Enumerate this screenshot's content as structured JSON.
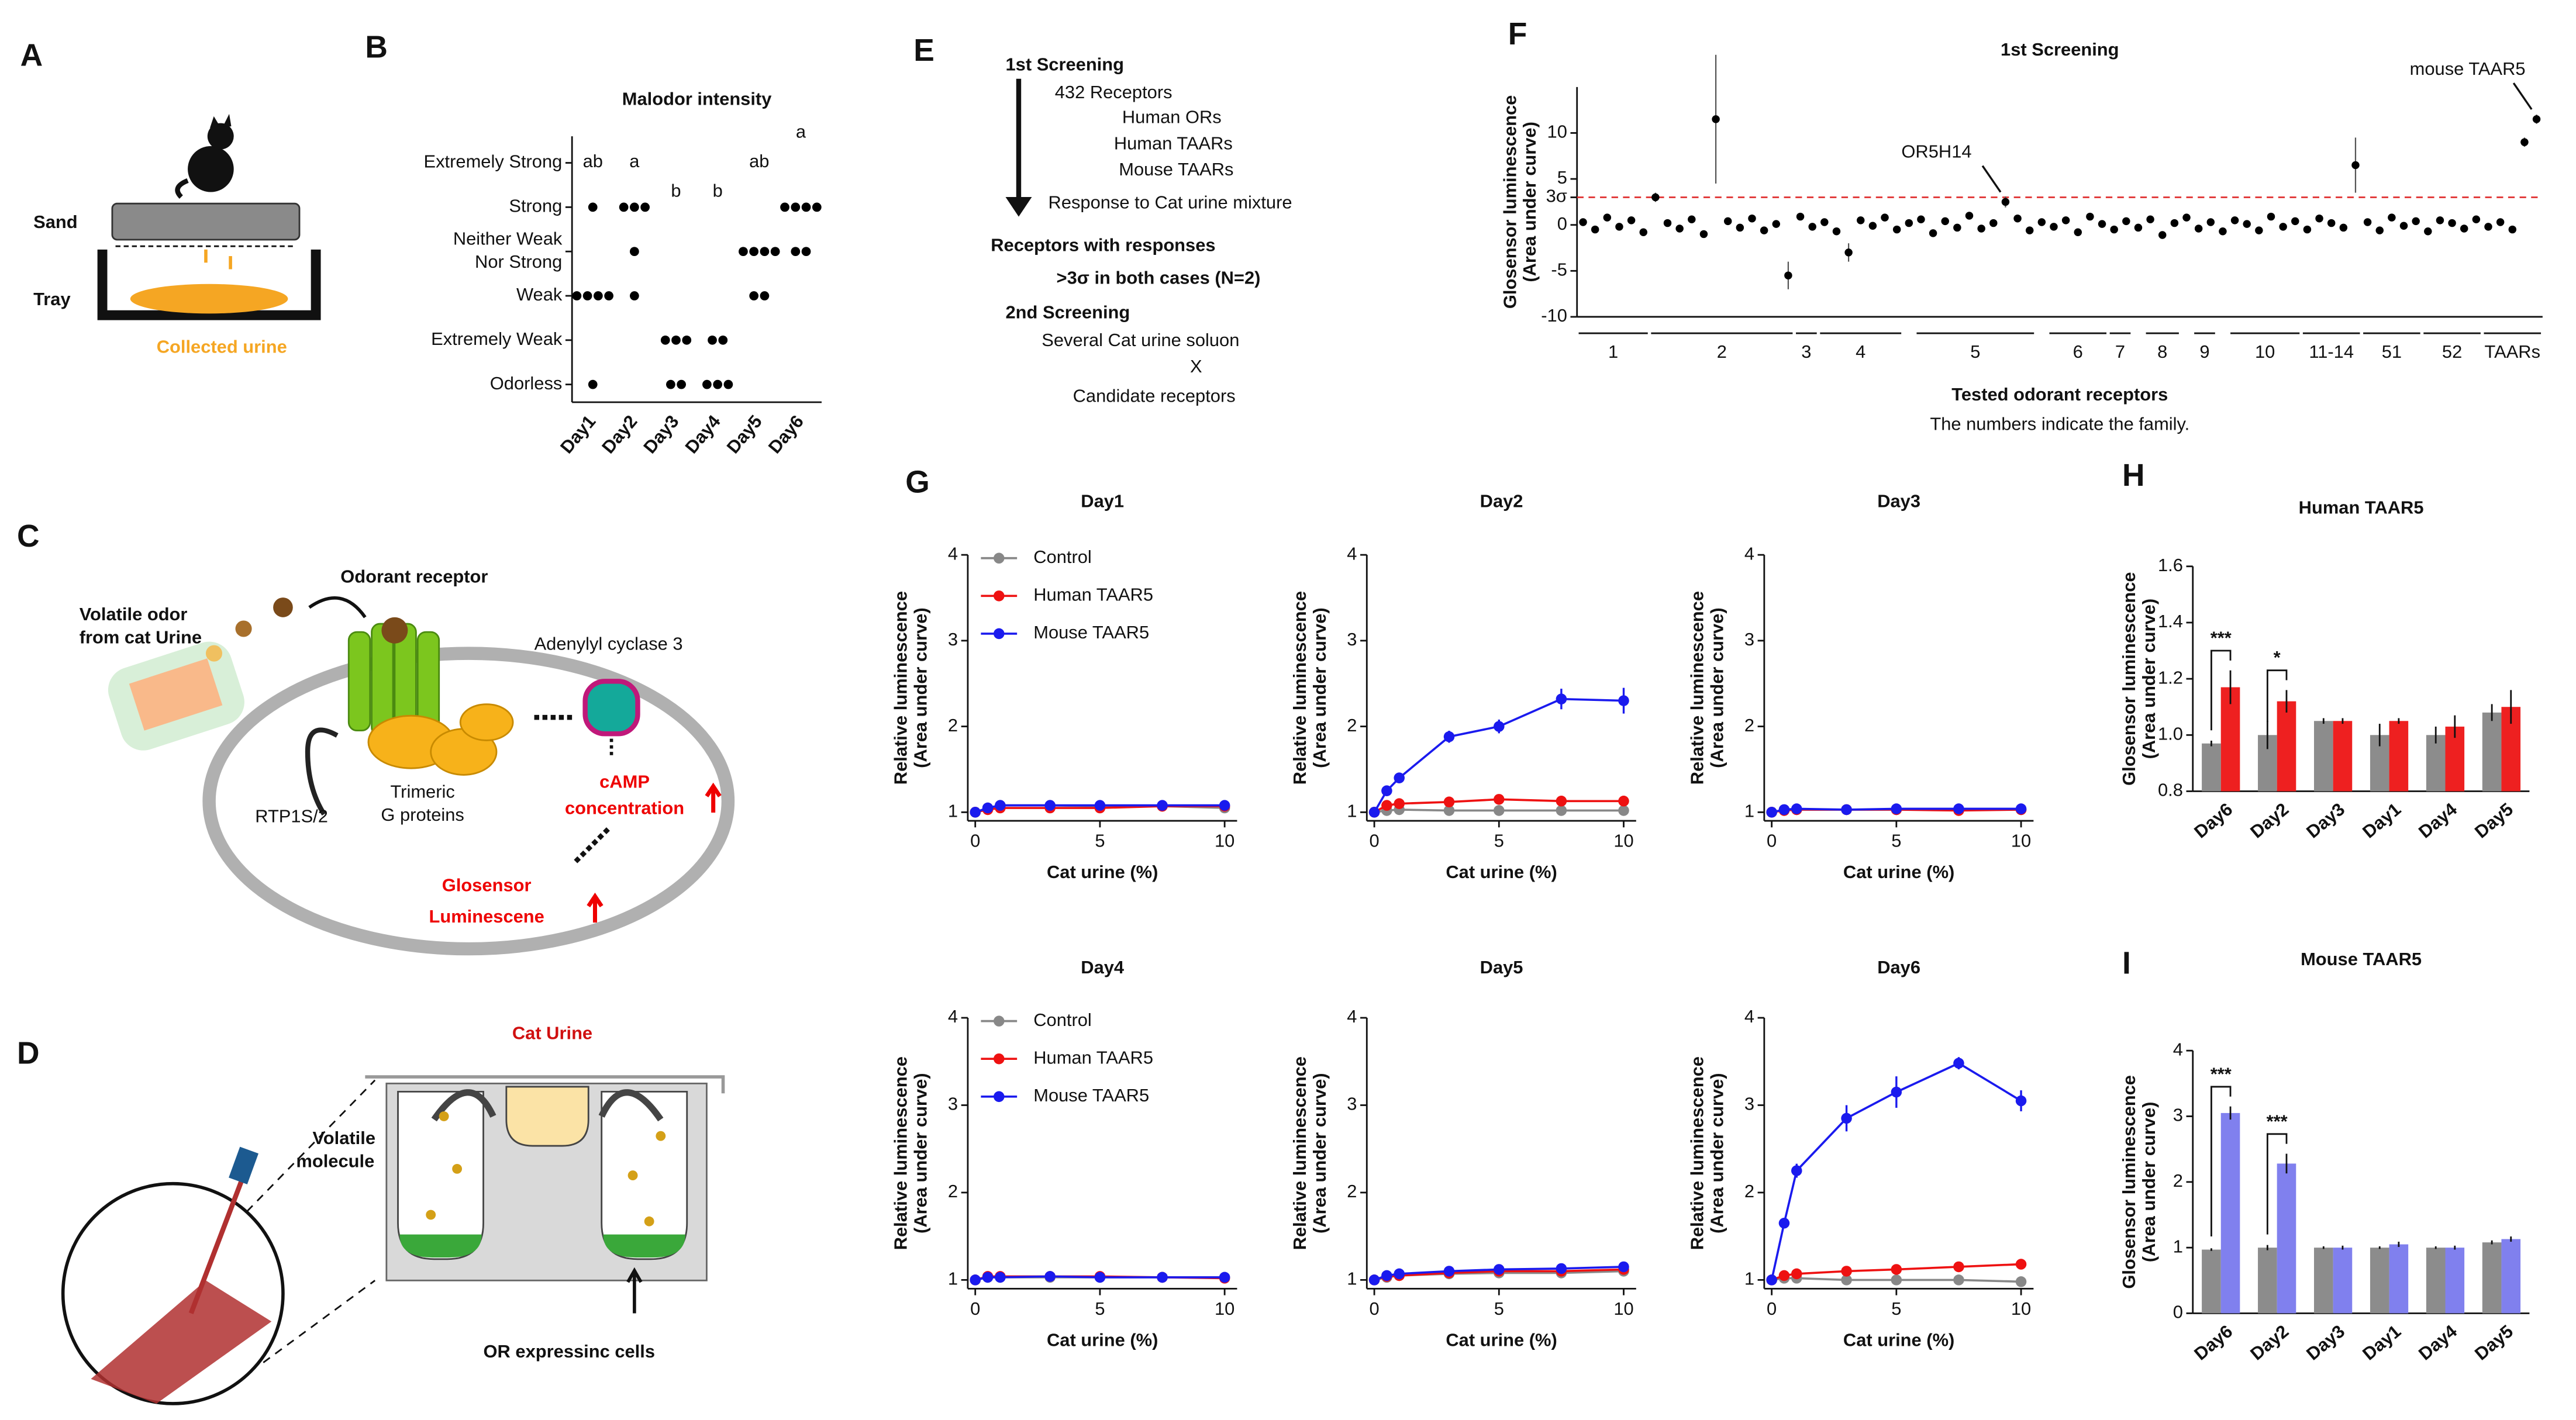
{
  "panels": [
    "A",
    "B",
    "C",
    "D",
    "E",
    "F",
    "G",
    "H",
    "I"
  ],
  "diagram_a": {
    "sand": "Sand",
    "tray": "Tray",
    "urine": "Collected urine"
  },
  "diagram_c": {
    "odor": [
      "Volatile odor",
      "from cat Urine"
    ],
    "receptor": "Odorant receptor",
    "cyclase": "Adenylyl cyclase 3",
    "rtp": "RTP1S/2",
    "gprotein": [
      "Trimeric",
      "G proteins"
    ],
    "camp": [
      "cAMP",
      "concentration"
    ],
    "glosensor": [
      "Glosensor",
      "Luminescene"
    ]
  },
  "diagram_d": {
    "urine": "Cat Urine",
    "molecule": [
      "Volatile",
      "molecule"
    ],
    "cells": "OR expressinc cells"
  },
  "diagram_e": {
    "first": "1st Screening",
    "receptors": "432 Receptors",
    "human_ors": "Human ORs",
    "human_taars": "Human TAARs",
    "mouse_taars": "Mouse TAARs",
    "response": "Response to Cat urine mixture",
    "with_responses": "Receptors with responses",
    "criterion": ">3σ in both cases (N=2)",
    "second": "2nd Screening",
    "solution": "Several Cat urine soluon",
    "times": "X",
    "candidates": "Candidate receptors"
  },
  "chart_data": [
    {
      "type": "dot",
      "title": "Malodor intensity",
      "categories": [
        "Day1",
        "Day2",
        "Day3",
        "Day4",
        "Day5",
        "Day6"
      ],
      "values": [
        [
          4,
          2,
          2,
          2,
          2,
          0
        ],
        [
          4,
          4,
          4,
          3,
          2
        ],
        [
          1,
          1,
          1,
          0,
          0
        ],
        [
          1,
          1,
          0,
          0,
          0
        ],
        [
          3,
          3,
          3,
          3,
          2,
          2
        ],
        [
          4,
          4,
          4,
          4,
          3,
          3
        ]
      ],
      "group_labels": [
        "ab",
        "a",
        "b",
        "b",
        "ab",
        "a"
      ],
      "color": "#000000",
      "ylim": [
        -0.4,
        5.6
      ],
      "yticks": [
        {
          "value": 0,
          "label": "Odorless"
        },
        {
          "value": 1,
          "label": "Extremely Weak"
        },
        {
          "value": 2,
          "label": "Weak"
        },
        {
          "value": 3,
          "label": [
            "Neither Weak",
            "Nor Strong"
          ]
        },
        {
          "value": 4,
          "label": "Strong"
        },
        {
          "value": 5,
          "label": "Extremely Strong"
        }
      ]
    },
    {
      "type": "scatter",
      "title": "1st Screening",
      "xlabel": "Tested odorant receptors",
      "note": "The numbers indicate the family.",
      "ylabel": [
        "Glosensor luminescence",
        "(Area under curve)"
      ],
      "color": "#000000",
      "values": [
        0.3,
        -0.5,
        0.8,
        -0.2,
        0.5,
        -0.8,
        3.0,
        0.2,
        -0.4,
        0.6,
        -1.0,
        11.5,
        0.4,
        -0.3,
        0.7,
        -0.6,
        0.1,
        -5.5,
        0.9,
        -0.2,
        0.3,
        -0.7,
        -3.0,
        0.5,
        -0.1,
        0.8,
        -0.5,
        0.2,
        0.6,
        -0.9,
        0.4,
        -0.3,
        1.0,
        -0.4,
        0.2,
        2.5,
        0.7,
        -0.6,
        0.3,
        -0.2,
        0.5,
        -0.8,
        0.9,
        0.1,
        -0.5,
        0.4,
        -0.3,
        0.6,
        -1.1,
        0.2,
        0.8,
        -0.4,
        0.3,
        -0.7,
        0.5,
        0.1,
        -0.6,
        0.9,
        -0.2,
        0.4,
        -0.5,
        0.7,
        0.2,
        -0.3,
        6.5,
        0.3,
        -0.6,
        0.8,
        -0.1,
        0.4,
        -0.7,
        0.5,
        0.2,
        -0.4,
        0.6,
        -0.2,
        0.3,
        -0.5,
        9.0,
        11.5
      ],
      "errors": [
        0.4,
        0.4,
        0.4,
        0.4,
        0.4,
        0.4,
        0.5,
        0.4,
        0.4,
        0.4,
        0.4,
        7,
        0.4,
        0.4,
        0.4,
        0.4,
        0.4,
        1.5,
        0.4,
        0.4,
        0.4,
        0.4,
        1,
        0.4,
        0.4,
        0.4,
        0.4,
        0.4,
        0.4,
        0.4,
        0.4,
        0.4,
        0.4,
        0.4,
        0.4,
        0.6,
        0.4,
        0.4,
        0.4,
        0.4,
        0.4,
        0.4,
        0.4,
        0.4,
        0.4,
        0.4,
        0.4,
        0.4,
        0.4,
        0.4,
        0.4,
        0.4,
        0.4,
        0.4,
        0.4,
        0.4,
        0.4,
        0.4,
        0.4,
        0.4,
        0.4,
        0.4,
        0.4,
        0.4,
        3,
        0.4,
        0.4,
        0.4,
        0.4,
        0.4,
        0.4,
        0.4,
        0.4,
        0.4,
        0.4,
        0.4,
        0.4,
        0.4,
        0.5,
        0.5
      ],
      "xlim": [
        0,
        80
      ],
      "ylim": [
        -10,
        15
      ],
      "yticks": [
        -10,
        -5,
        0,
        {
          "value": 3,
          "label": "3σ"
        },
        5,
        10
      ],
      "hline": 3,
      "hline_color": "#e03030",
      "families": [
        {
          "label": "1",
          "start": 0,
          "end": 6
        },
        {
          "label": "2",
          "start": 6,
          "end": 18
        },
        {
          "label": "3",
          "start": 18,
          "end": 20
        },
        {
          "label": "4",
          "start": 20,
          "end": 27
        },
        {
          "label": "5",
          "start": 28,
          "end": 38
        },
        {
          "label": "6",
          "start": 39,
          "end": 44
        },
        {
          "label": "7",
          "start": 44,
          "end": 46
        },
        {
          "label": "8",
          "start": 47,
          "end": 50
        },
        {
          "label": "9",
          "start": 51,
          "end": 53
        },
        {
          "label": "10",
          "start": 54,
          "end": 60
        },
        {
          "label": "11-14",
          "start": 60,
          "end": 65
        },
        {
          "label": "51",
          "start": 65,
          "end": 70
        },
        {
          "label": "52",
          "start": 70,
          "end": 75
        },
        {
          "label": "TAARs",
          "start": 75,
          "end": 80
        }
      ],
      "annotations": [
        {
          "text": "OR5H14",
          "index": 35
        },
        {
          "text": "mouse TAAR5",
          "index": 79
        }
      ]
    },
    {
      "type": "line",
      "title": "Day1",
      "xlabel": "Cat urine (%)",
      "ylabel": [
        "Relative luminescence",
        "(Area under curve)"
      ],
      "legend": true,
      "x": [
        0,
        0.5,
        1,
        3,
        5,
        7.5,
        10
      ],
      "xlim": [
        -0.3,
        10.5
      ],
      "xticks": [
        0,
        5,
        10
      ],
      "ylim": [
        0.9,
        4
      ],
      "yticks": [
        1,
        2,
        3,
        4
      ],
      "series": [
        {
          "name": "Control",
          "color": "#888888",
          "values": [
            1,
            1.05,
            1.08,
            1.08,
            1.07,
            1.07,
            1.05
          ]
        },
        {
          "name": "Human TAAR5",
          "color": "#ee1111",
          "values": [
            1,
            1.03,
            1.05,
            1.05,
            1.05,
            1.07,
            1.07
          ]
        },
        {
          "name": "Mouse TAAR5",
          "color": "#1a1aee",
          "values": [
            1,
            1.05,
            1.08,
            1.08,
            1.08,
            1.08,
            1.08
          ]
        }
      ]
    },
    {
      "type": "line",
      "title": "Day2",
      "xlabel": "Cat urine (%)",
      "ylabel": [
        "Relative luminescence",
        "(Area under curve)"
      ],
      "legend": false,
      "x": [
        0,
        0.5,
        1,
        3,
        5,
        7.5,
        10
      ],
      "xlim": [
        -0.3,
        10.5
      ],
      "xticks": [
        0,
        5,
        10
      ],
      "ylim": [
        0.9,
        4
      ],
      "yticks": [
        1,
        2,
        3,
        4
      ],
      "series": [
        {
          "name": "Control",
          "color": "#888888",
          "values": [
            1,
            1.02,
            1.03,
            1.02,
            1.02,
            1.02,
            1.02
          ]
        },
        {
          "name": "Human TAAR5",
          "color": "#ee1111",
          "values": [
            1,
            1.08,
            1.1,
            1.12,
            1.15,
            1.13,
            1.13
          ]
        },
        {
          "name": "Mouse TAAR5",
          "color": "#1a1aee",
          "values": [
            1,
            1.25,
            1.4,
            1.88,
            2.0,
            2.32,
            2.3
          ],
          "errors": [
            0.03,
            0.05,
            0.05,
            0.07,
            0.08,
            0.12,
            0.15
          ]
        }
      ]
    },
    {
      "type": "line",
      "title": "Day3",
      "xlabel": "Cat urine (%)",
      "ylabel": [
        "Relative luminescence",
        "(Area under curve)"
      ],
      "legend": false,
      "x": [
        0,
        0.5,
        1,
        3,
        5,
        7.5,
        10
      ],
      "xlim": [
        -0.3,
        10.5
      ],
      "xticks": [
        0,
        5,
        10
      ],
      "ylim": [
        0.9,
        4
      ],
      "yticks": [
        1,
        2,
        3,
        4
      ],
      "series": [
        {
          "name": "Control",
          "color": "#888888",
          "values": [
            1,
            1.03,
            1.03,
            1.03,
            1.03,
            1.03,
            1.03
          ]
        },
        {
          "name": "Human TAAR5",
          "color": "#ee1111",
          "values": [
            1,
            1.02,
            1.03,
            1.03,
            1.03,
            1.02,
            1.03
          ]
        },
        {
          "name": "Mouse TAAR5",
          "color": "#1a1aee",
          "values": [
            1,
            1.03,
            1.04,
            1.03,
            1.04,
            1.04,
            1.04
          ]
        }
      ]
    },
    {
      "type": "line",
      "title": "Day4",
      "xlabel": "Cat urine (%)",
      "ylabel": [
        "Relative luminescence",
        "(Area under curve)"
      ],
      "legend": true,
      "x": [
        0,
        0.5,
        1,
        3,
        5,
        7.5,
        10
      ],
      "xlim": [
        -0.3,
        10.5
      ],
      "xticks": [
        0,
        5,
        10
      ],
      "ylim": [
        0.9,
        4
      ],
      "yticks": [
        1,
        2,
        3,
        4
      ],
      "series": [
        {
          "name": "Control",
          "color": "#888888",
          "values": [
            1,
            1.03,
            1.03,
            1.03,
            1.03,
            1.03,
            1.03
          ]
        },
        {
          "name": "Human TAAR5",
          "color": "#ee1111",
          "values": [
            1,
            1.04,
            1.04,
            1.04,
            1.04,
            1.03,
            1.02
          ]
        },
        {
          "name": "Mouse TAAR5",
          "color": "#1a1aee",
          "values": [
            1,
            1.03,
            1.03,
            1.04,
            1.03,
            1.03,
            1.03
          ]
        }
      ]
    },
    {
      "type": "line",
      "title": "Day5",
      "xlabel": "Cat urine (%)",
      "ylabel": [
        "Relative luminescence",
        "(Area under curve)"
      ],
      "legend": false,
      "x": [
        0,
        0.5,
        1,
        3,
        5,
        7.5,
        10
      ],
      "xlim": [
        -0.3,
        10.5
      ],
      "xticks": [
        0,
        5,
        10
      ],
      "ylim": [
        0.9,
        4
      ],
      "yticks": [
        1,
        2,
        3,
        4
      ],
      "series": [
        {
          "name": "Control",
          "color": "#888888",
          "values": [
            1,
            1.03,
            1.05,
            1.07,
            1.08,
            1.08,
            1.1
          ]
        },
        {
          "name": "Human TAAR5",
          "color": "#ee1111",
          "values": [
            1,
            1.04,
            1.05,
            1.08,
            1.1,
            1.1,
            1.12
          ]
        },
        {
          "name": "Mouse TAAR5",
          "color": "#1a1aee",
          "values": [
            1,
            1.05,
            1.07,
            1.1,
            1.12,
            1.13,
            1.15
          ]
        }
      ]
    },
    {
      "type": "line",
      "title": "Day6",
      "xlabel": "Cat urine (%)",
      "ylabel": [
        "Relative luminescence",
        "(Area under curve)"
      ],
      "legend": false,
      "x": [
        0,
        0.5,
        1,
        3,
        5,
        7.5,
        10
      ],
      "xlim": [
        -0.3,
        10.5
      ],
      "xticks": [
        0,
        5,
        10
      ],
      "ylim": [
        0.9,
        4
      ],
      "yticks": [
        1,
        2,
        3,
        4
      ],
      "series": [
        {
          "name": "Control",
          "color": "#888888",
          "values": [
            1,
            1.02,
            1.02,
            1.0,
            1.0,
            1.0,
            0.98
          ]
        },
        {
          "name": "Human TAAR5",
          "color": "#ee1111",
          "values": [
            1,
            1.05,
            1.07,
            1.1,
            1.12,
            1.15,
            1.18
          ],
          "errors": [
            0.02,
            0.02,
            0.03,
            0.04,
            0.04,
            0.05,
            0.06
          ]
        },
        {
          "name": "Mouse TAAR5",
          "color": "#1a1aee",
          "values": [
            1,
            1.65,
            2.25,
            2.85,
            3.15,
            3.48,
            3.05
          ],
          "errors": [
            0.03,
            0.05,
            0.08,
            0.15,
            0.18,
            0.07,
            0.12
          ]
        }
      ]
    },
    {
      "type": "bar",
      "title": "Human TAAR5",
      "ylabel": [
        "Glosensor luminescence",
        "(Area under curve)"
      ],
      "categories": [
        "Day6",
        "Day2",
        "Day3",
        "Day1",
        "Day4",
        "Day5"
      ],
      "series": [
        {
          "color": "#8c8c8c",
          "values": [
            0.97,
            1.0,
            1.05,
            1.0,
            1.0,
            1.08
          ],
          "errors": [
            0.01,
            0.05,
            0.01,
            0.04,
            0.03,
            0.03
          ]
        },
        {
          "color": "#ee2020",
          "values": [
            1.17,
            1.12,
            1.05,
            1.05,
            1.03,
            1.1
          ],
          "errors": [
            0.06,
            0.04,
            0.01,
            0.01,
            0.04,
            0.06
          ]
        }
      ],
      "ylim": [
        0.8,
        1.6
      ],
      "yticks": [
        0.8,
        {
          "value": 1,
          "label": "1.0"
        },
        1.2,
        1.4,
        1.6
      ],
      "annotations": [
        {
          "text": "***",
          "category": 0
        },
        {
          "text": "*",
          "category": 1
        }
      ]
    },
    {
      "type": "bar",
      "title": "Mouse TAAR5",
      "ylabel": [
        "Glosensor luminescence",
        "(Area under curve)"
      ],
      "categories": [
        "Day6",
        "Day2",
        "Day3",
        "Day1",
        "Day4",
        "Day5"
      ],
      "series": [
        {
          "color": "#8c8c8c",
          "values": [
            0.97,
            1.0,
            1.0,
            1.0,
            1.0,
            1.08
          ],
          "errors": [
            0.02,
            0.04,
            0.02,
            0.02,
            0.02,
            0.03
          ]
        },
        {
          "color": "#8080ee",
          "values": [
            3.05,
            2.28,
            1.0,
            1.05,
            1.0,
            1.13
          ],
          "errors": [
            0.1,
            0.15,
            0.03,
            0.04,
            0.03,
            0.04
          ]
        }
      ],
      "ylim": [
        0,
        4
      ],
      "yticks": [
        0,
        1,
        2,
        3,
        4
      ],
      "annotations": [
        {
          "text": "***",
          "category": 0
        },
        {
          "text": "***",
          "category": 1
        }
      ]
    }
  ]
}
